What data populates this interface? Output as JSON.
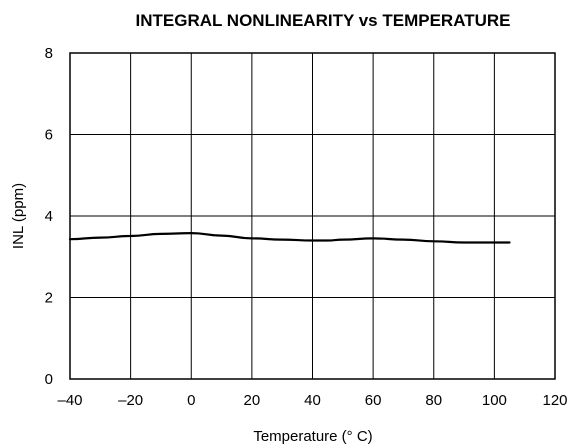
{
  "chart_data": {
    "type": "line",
    "title": "INTEGRAL NONLINEARITY vs TEMPERATURE",
    "xlabel": "Temperature (° C)",
    "ylabel": "INL (ppm)",
    "xlim": [
      -40,
      120
    ],
    "ylim": [
      0,
      8
    ],
    "xticks": [
      -40,
      -20,
      0,
      20,
      40,
      60,
      80,
      100,
      120
    ],
    "yticks": [
      0,
      2,
      4,
      6,
      8
    ],
    "xtick_labels": [
      "–40",
      "–20",
      "0",
      "20",
      "40",
      "60",
      "80",
      "100",
      "120"
    ],
    "ytick_labels": [
      "0",
      "2",
      "4",
      "6",
      "8"
    ],
    "grid": true,
    "legend": "none",
    "series": [
      {
        "x": [
          -40,
          -30,
          -20,
          -10,
          0,
          10,
          20,
          30,
          40,
          45,
          50,
          60,
          70,
          80,
          90,
          100,
          105
        ],
        "y": [
          3.43,
          3.47,
          3.51,
          3.56,
          3.58,
          3.52,
          3.45,
          3.42,
          3.4,
          3.4,
          3.42,
          3.45,
          3.42,
          3.38,
          3.35,
          3.35,
          3.35
        ]
      }
    ]
  }
}
